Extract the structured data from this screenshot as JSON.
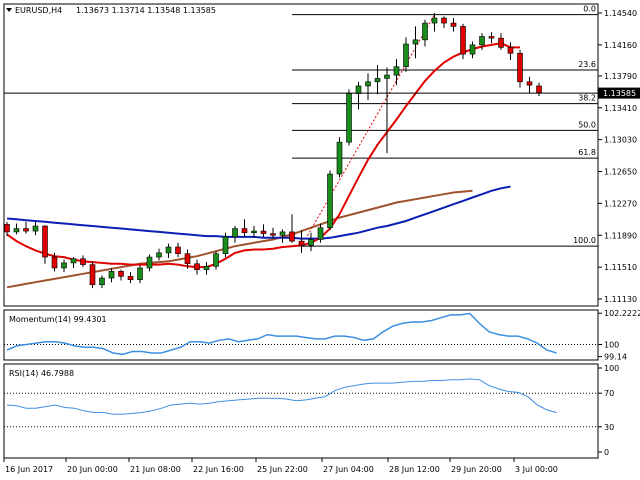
{
  "header": {
    "symbol": "EURUSD,H4",
    "ohlc": "1.13673 1.13714 1.13548 1.13585"
  },
  "colors": {
    "bull": "#1a8c1a",
    "bear": "#e00000",
    "ma_fast": "#e00000",
    "ma_mid": "#0a1fb4",
    "ma_slow": "#a0522d",
    "momentum": "#3d8fe0",
    "rsi": "#3d8fe0",
    "grid": "#000000",
    "background": "#ffffff"
  },
  "chart_data": [
    {
      "type": "candlestick",
      "title": "EURUSD,H4",
      "ylim": [
        1.1113,
        1.1454
      ],
      "y_ticks": [
        "1.14540",
        "1.14160",
        "1.13790",
        "1.13410",
        "1.13030",
        "1.12650",
        "1.12270",
        "1.11890",
        "1.11510",
        "1.11130"
      ],
      "current_price": "1.13585",
      "x_ticks": [
        "16 Jun 2017",
        "20 Jun 00:00",
        "21 Jun 08:00",
        "22 Jun 16:00",
        "25 Jun 22:00",
        "27 Jun 04:00",
        "28 Jun 12:00",
        "29 Jun 20:00",
        "3 Jul 00:00"
      ],
      "fibonacci": [
        {
          "label": "0.0",
          "value": 1.1452
        },
        {
          "label": "23.6",
          "value": 1.1386
        },
        {
          "label": "38.2",
          "value": 1.1346
        },
        {
          "label": "50.0",
          "value": 1.1314
        },
        {
          "label": "61.8",
          "value": 1.1281
        },
        {
          "label": "100.0",
          "value": 1.1176
        }
      ],
      "candles": [
        [
          1.1202,
          1.1205,
          1.1188,
          1.1193
        ],
        [
          1.1193,
          1.1203,
          1.119,
          1.1197
        ],
        [
          1.1197,
          1.1205,
          1.1191,
          1.1194
        ],
        [
          1.1194,
          1.1205,
          1.1189,
          1.12
        ],
        [
          1.12,
          1.1201,
          1.1155,
          1.1163
        ],
        [
          1.1163,
          1.1168,
          1.1146,
          1.115
        ],
        [
          1.115,
          1.116,
          1.1145,
          1.1156
        ],
        [
          1.1156,
          1.1163,
          1.115,
          1.1161
        ],
        [
          1.1161,
          1.1165,
          1.1151,
          1.1154
        ],
        [
          1.1154,
          1.1158,
          1.1126,
          1.113
        ],
        [
          1.113,
          1.1141,
          1.1126,
          1.1138
        ],
        [
          1.1138,
          1.115,
          1.1133,
          1.1146
        ],
        [
          1.1146,
          1.1148,
          1.1135,
          1.114
        ],
        [
          1.114,
          1.1145,
          1.1132,
          1.1136
        ],
        [
          1.1136,
          1.1153,
          1.1132,
          1.115
        ],
        [
          1.115,
          1.1166,
          1.1146,
          1.1163
        ],
        [
          1.1163,
          1.1173,
          1.1159,
          1.1168
        ],
        [
          1.1168,
          1.1179,
          1.1162,
          1.1175
        ],
        [
          1.1175,
          1.118,
          1.1163,
          1.1167
        ],
        [
          1.1167,
          1.1172,
          1.1149,
          1.1155
        ],
        [
          1.1155,
          1.116,
          1.1142,
          1.1148
        ],
        [
          1.1148,
          1.1157,
          1.1142,
          1.1152
        ],
        [
          1.1152,
          1.117,
          1.1148,
          1.1167
        ],
        [
          1.1167,
          1.1192,
          1.1163,
          1.1187
        ],
        [
          1.1187,
          1.12,
          1.118,
          1.1197
        ],
        [
          1.1197,
          1.1208,
          1.1187,
          1.1192
        ],
        [
          1.1192,
          1.12,
          1.1186,
          1.1194
        ],
        [
          1.1194,
          1.1202,
          1.1187,
          1.1191
        ],
        [
          1.1191,
          1.1198,
          1.1185,
          1.1189
        ],
        [
          1.1189,
          1.1196,
          1.118,
          1.1193
        ],
        [
          1.1193,
          1.1214,
          1.118,
          1.1182
        ],
        [
          1.1182,
          1.1195,
          1.1168,
          1.1177
        ],
        [
          1.1177,
          1.1192,
          1.117,
          1.1184
        ],
        [
          1.1184,
          1.1203,
          1.118,
          1.1198
        ],
        [
          1.1198,
          1.1266,
          1.1195,
          1.1262
        ],
        [
          1.1262,
          1.1306,
          1.1258,
          1.13
        ],
        [
          1.13,
          1.1363,
          1.1296,
          1.1358
        ],
        [
          1.1358,
          1.1372,
          1.1339,
          1.1367
        ],
        [
          1.1367,
          1.1382,
          1.135,
          1.1372
        ],
        [
          1.1372,
          1.1392,
          1.1357,
          1.1376
        ],
        [
          1.1376,
          1.1389,
          1.1287,
          1.138
        ],
        [
          1.138,
          1.1399,
          1.1368,
          1.139
        ],
        [
          1.139,
          1.1425,
          1.1384,
          1.1417
        ],
        [
          1.1417,
          1.1438,
          1.14,
          1.1422
        ],
        [
          1.1422,
          1.1446,
          1.1414,
          1.1442
        ],
        [
          1.1442,
          1.1454,
          1.1432,
          1.1448
        ],
        [
          1.1448,
          1.145,
          1.1436,
          1.1442
        ],
        [
          1.1442,
          1.1448,
          1.1432,
          1.1438
        ],
        [
          1.1438,
          1.1441,
          1.1399,
          1.1405
        ],
        [
          1.1405,
          1.142,
          1.14,
          1.1416
        ],
        [
          1.1416,
          1.143,
          1.141,
          1.1426
        ],
        [
          1.1426,
          1.1431,
          1.1418,
          1.1424
        ],
        [
          1.1424,
          1.143,
          1.141,
          1.1413
        ],
        [
          1.1413,
          1.1419,
          1.1398,
          1.1406
        ],
        [
          1.1406,
          1.141,
          1.1365,
          1.1372
        ],
        [
          1.1372,
          1.1378,
          1.1358,
          1.1368
        ],
        [
          1.1367,
          1.1371,
          1.1355,
          1.1359
        ]
      ],
      "ma_fast": [
        1.119,
        1.1182,
        1.1176,
        1.1171,
        1.1167,
        1.1164,
        1.1163,
        1.116,
        1.1158,
        1.1157,
        1.1156,
        1.1155,
        1.1155,
        1.1154,
        1.1154,
        1.1154,
        1.1154,
        1.1155,
        1.1154,
        1.1152,
        1.1151,
        1.1151,
        1.1155,
        1.1161,
        1.1168,
        1.1171,
        1.1172,
        1.1172,
        1.1173,
        1.1175,
        1.1176,
        1.1177,
        1.118,
        1.1186,
        1.1197,
        1.1214,
        1.1236,
        1.1258,
        1.1279,
        1.1297,
        1.1312,
        1.1327,
        1.1343,
        1.1358,
        1.1373,
        1.1385,
        1.1395,
        1.1402,
        1.1407,
        1.1411,
        1.1414,
        1.1416,
        1.1418,
        1.1413,
        1.1413
      ],
      "ma_mid": [
        1.1209,
        1.1208,
        1.1207,
        1.1206,
        1.1205,
        1.1204,
        1.1203,
        1.1202,
        1.1201,
        1.12,
        1.1199,
        1.1198,
        1.1197,
        1.1196,
        1.1195,
        1.1194,
        1.1193,
        1.1192,
        1.1191,
        1.119,
        1.1189,
        1.1188,
        1.1188,
        1.1187,
        1.1187,
        1.1187,
        1.1187,
        1.1186,
        1.1186,
        1.1186,
        1.1186,
        1.1185,
        1.1185,
        1.1185,
        1.1186,
        1.1188,
        1.119,
        1.1192,
        1.1195,
        1.1198,
        1.12,
        1.1203,
        1.1206,
        1.121,
        1.1214,
        1.1218,
        1.1222,
        1.1226,
        1.123,
        1.1234,
        1.1238,
        1.1242,
        1.1245,
        1.1247
      ],
      "ma_slow": [
        1.1127,
        1.1129,
        1.1131,
        1.1133,
        1.1135,
        1.1137,
        1.1139,
        1.1141,
        1.1143,
        1.1145,
        1.1147,
        1.1149,
        1.1151,
        1.1153,
        1.1155,
        1.1156,
        1.1157,
        1.1158,
        1.116,
        1.1162,
        1.1164,
        1.1167,
        1.117,
        1.1173,
        1.1176,
        1.1178,
        1.118,
        1.1182,
        1.1184,
        1.1187,
        1.119,
        1.1194,
        1.1198,
        1.1202,
        1.1206,
        1.121,
        1.1213,
        1.1216,
        1.1219,
        1.1222,
        1.1225,
        1.1228,
        1.123,
        1.1232,
        1.1234,
        1.1236,
        1.1238,
        1.124,
        1.1241,
        1.1242
      ]
    },
    {
      "type": "line",
      "title": "Momentum(14) 99.4301",
      "ylim": [
        98.9,
        102.45
      ],
      "y_ticks": [
        {
          "label": "102.2222",
          "value": 102.2222
        },
        {
          "label": "100",
          "value": 100
        },
        {
          "label": "99.14",
          "value": 99.14
        }
      ],
      "reference_line": 100,
      "values": [
        99.6,
        99.9,
        100.0,
        100.1,
        100.2,
        100.2,
        100.1,
        99.9,
        99.8,
        99.8,
        99.7,
        99.4,
        99.3,
        99.5,
        99.5,
        99.4,
        99.4,
        99.6,
        99.8,
        100.2,
        100.2,
        100.1,
        100.3,
        100.4,
        100.2,
        100.3,
        100.4,
        100.7,
        100.6,
        100.6,
        100.6,
        100.5,
        100.4,
        100.4,
        100.6,
        100.6,
        100.5,
        100.3,
        100.4,
        100.9,
        101.3,
        101.5,
        101.6,
        101.6,
        101.7,
        101.9,
        102.1,
        102.1,
        102.2,
        101.5,
        100.9,
        100.7,
        100.6,
        100.6,
        100.4,
        100.1,
        99.6,
        99.4
      ]
    },
    {
      "type": "line",
      "title": "RSI(14) 46.7988",
      "ylim": [
        0,
        100
      ],
      "y_ticks": [
        {
          "label": "100",
          "value": 100
        },
        {
          "label": "70",
          "value": 70
        },
        {
          "label": "30",
          "value": 30
        },
        {
          "label": "0",
          "value": 0
        }
      ],
      "reference_lines": [
        70,
        30
      ],
      "values": [
        56,
        55,
        52,
        52,
        54,
        56,
        53,
        52,
        49,
        47,
        47,
        45,
        45,
        46,
        47,
        49,
        52,
        56,
        57,
        58,
        57,
        58,
        60,
        61,
        62,
        63,
        64,
        64,
        64,
        63,
        61,
        62,
        64,
        66,
        73,
        77,
        79,
        81,
        82,
        82,
        82,
        83,
        84,
        84,
        85,
        85,
        86,
        86,
        87,
        86,
        79,
        75,
        72,
        71,
        66,
        56,
        50,
        47
      ]
    }
  ]
}
